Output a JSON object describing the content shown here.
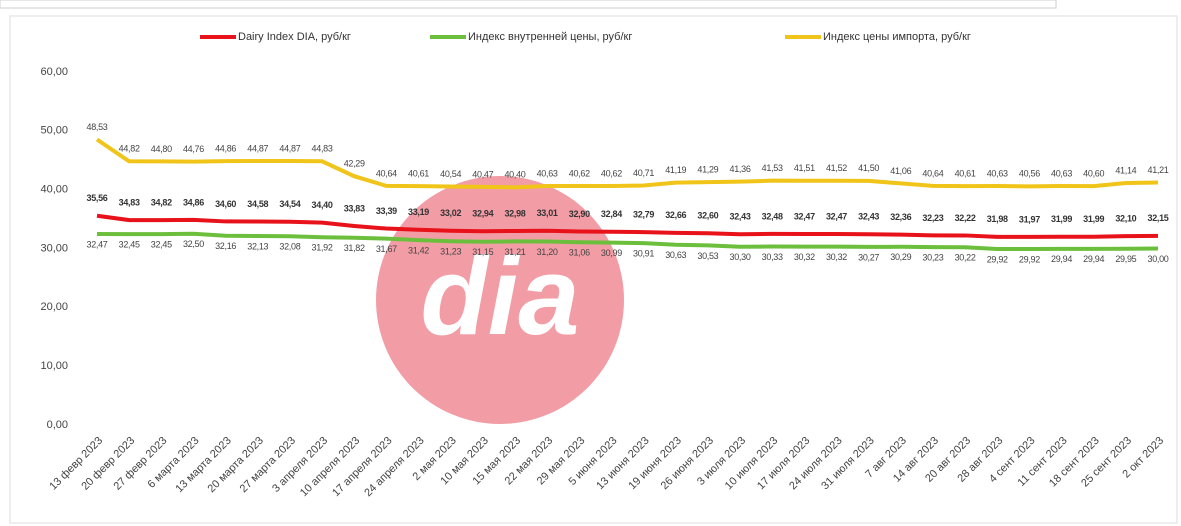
{
  "chart_data": {
    "type": "line",
    "categories": [
      "13 февр 2023",
      "20 февр 2023",
      "27 февр 2023",
      "6 марта 2023",
      "13 марта 2023",
      "20 марта 2023",
      "27 марта 2023",
      "3 апреля 2023",
      "10 апреля 2023",
      "17 апреля 2023",
      "24 апреля 2023",
      "2 мая 2023",
      "10 мая 2023",
      "15 мая 2023",
      "22 мая 2023",
      "29 мая 2023",
      "5 июня 2023",
      "13 июня 2023",
      "19 июня 2023",
      "26 июня 2023",
      "3 июля 2023",
      "10 июля 2023",
      "17 июля 2023",
      "24 июля 2023",
      "31 июля 2023",
      "7 авг 2023",
      "14 авг 2023",
      "20 авг 2023",
      "28 авг 2023",
      "4 сент 2023",
      "11 сент 2023",
      "18 сент 2023",
      "25 сент 2023",
      "2 окт 2023"
    ],
    "series": [
      {
        "name": "Dairy Index DIA,  руб/кг",
        "color": "#e8121b",
        "values": [
          35.56,
          34.83,
          34.82,
          34.86,
          34.6,
          34.58,
          34.54,
          34.4,
          33.83,
          33.39,
          33.19,
          33.02,
          32.94,
          32.98,
          33.01,
          32.9,
          32.84,
          32.79,
          32.66,
          32.6,
          32.43,
          32.48,
          32.47,
          32.47,
          32.43,
          32.36,
          32.23,
          32.22,
          31.98,
          31.97,
          31.99,
          31.99,
          32.1,
          32.15
        ],
        "value_labels": [
          "35,56",
          "34,83",
          "34,82",
          "34,86",
          "34,60",
          "34,58",
          "34,54",
          "34,40",
          "33,83",
          "33,39",
          "33,19",
          "33,02",
          "32,94",
          "32,98",
          "33,01",
          "32,90",
          "32,84",
          "32,79",
          "32,66",
          "32,60",
          "32,43",
          "32,48",
          "32,47",
          "32,47",
          "32,43",
          "32,36",
          "32,23",
          "32,22",
          "31,98",
          "31,97",
          "31,99",
          "31,99",
          "32,10",
          "32,15"
        ]
      },
      {
        "name": "Индекс внутренней цены, руб/кг",
        "color": "#6cbf3c",
        "values": [
          32.47,
          32.45,
          32.45,
          32.5,
          32.16,
          32.13,
          32.08,
          31.92,
          31.82,
          31.67,
          31.42,
          31.23,
          31.15,
          31.21,
          31.2,
          31.06,
          30.99,
          30.91,
          30.63,
          30.53,
          30.3,
          30.33,
          30.32,
          30.32,
          30.27,
          30.29,
          30.23,
          30.22,
          29.92,
          29.92,
          29.94,
          29.94,
          29.95,
          30.0
        ],
        "value_labels": [
          "32,47",
          "32,45",
          "32,45",
          "32,50",
          "32,16",
          "32,13",
          "32,08",
          "31,92",
          "31,82",
          "31,67",
          "31,42",
          "31,23",
          "31,15",
          "31,21",
          "31,20",
          "31,06",
          "30,99",
          "30,91",
          "30,63",
          "30,53",
          "30,30",
          "30,33",
          "30,32",
          "30,32",
          "30,27",
          "30,29",
          "30,23",
          "30,22",
          "29,92",
          "29,92",
          "29,94",
          "29,94",
          "29,95",
          "30,00"
        ]
      },
      {
        "name": "Индекс цены импорта, руб/кг",
        "color": "#f0c419",
        "values": [
          48.53,
          44.82,
          44.8,
          44.76,
          44.86,
          44.87,
          44.87,
          44.83,
          42.29,
          40.64,
          40.61,
          40.54,
          40.47,
          40.4,
          40.63,
          40.62,
          40.62,
          40.71,
          41.19,
          41.29,
          41.36,
          41.53,
          41.51,
          41.52,
          41.5,
          41.06,
          40.64,
          40.61,
          40.63,
          40.56,
          40.63,
          40.6,
          41.14,
          41.21
        ],
        "value_labels": [
          "48,53",
          "44,82",
          "44,80",
          "44,76",
          "44,86",
          "44,87",
          "44,87",
          "44,83",
          "42,29",
          "40,64",
          "40,61",
          "40,54",
          "40,47",
          "40,40",
          "40,63",
          "40,62",
          "40,62",
          "40,71",
          "41,19",
          "41,29",
          "41,36",
          "41,53",
          "41,51",
          "41,52",
          "41,50",
          "41,06",
          "40,64",
          "40,61",
          "40,63",
          "40,56",
          "40,63",
          "40,60",
          "41,14",
          "41,21"
        ]
      }
    ],
    "ylim": [
      0,
      60
    ],
    "yticks": [
      {
        "value": 0,
        "label": "0,00"
      },
      {
        "value": 10,
        "label": "10,00"
      },
      {
        "value": 20,
        "label": "20,00"
      },
      {
        "value": 30,
        "label": "30,00"
      },
      {
        "value": 40,
        "label": "40,00"
      },
      {
        "value": 50,
        "label": "50,00"
      },
      {
        "value": 60,
        "label": "60,00"
      }
    ],
    "grid": false,
    "legend": "top",
    "watermark": "dia"
  }
}
